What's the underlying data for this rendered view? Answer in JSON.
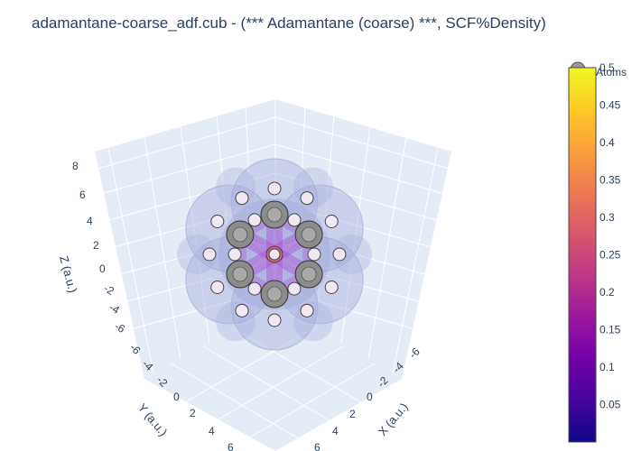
{
  "title": "adamantane-coarse_adf.cub - (*** Adamantane (coarse) ***, SCF%Density)",
  "axes": {
    "z": {
      "label": "Z (a.u.)",
      "ticks": [
        "8",
        "6",
        "4",
        "2",
        "0",
        "-2",
        "-4",
        "-6"
      ]
    },
    "y": {
      "label": "Y (a.u.)",
      "ticks": [
        "-6",
        "-4",
        "-2",
        "0",
        "2",
        "4",
        "6"
      ]
    },
    "x": {
      "label": "X (a.u.)",
      "ticks": [
        "-6",
        "-4",
        "-2",
        "0",
        "2",
        "4",
        "6"
      ]
    }
  },
  "legend": {
    "atoms_label": "Atoms"
  },
  "colorbar": {
    "ticks": [
      "0.5",
      "0.45",
      "0.4",
      "0.35",
      "0.3",
      "0.25",
      "0.2",
      "0.15",
      "0.1",
      "0.05"
    ],
    "range": [
      0,
      0.5
    ],
    "colors": [
      "#0d0887",
      "#46039f",
      "#7201a8",
      "#9c179e",
      "#bd3786",
      "#d8576b",
      "#ed7953",
      "#fb9f3a",
      "#fdca26",
      "#f0f921"
    ]
  },
  "colors": {
    "carbon": "#8c8c8c",
    "hydrogen": "#f2e8f4",
    "isosurface": "#a8b0de",
    "density": "#b04dd6",
    "grid_bg": "#e5ecf6"
  }
}
